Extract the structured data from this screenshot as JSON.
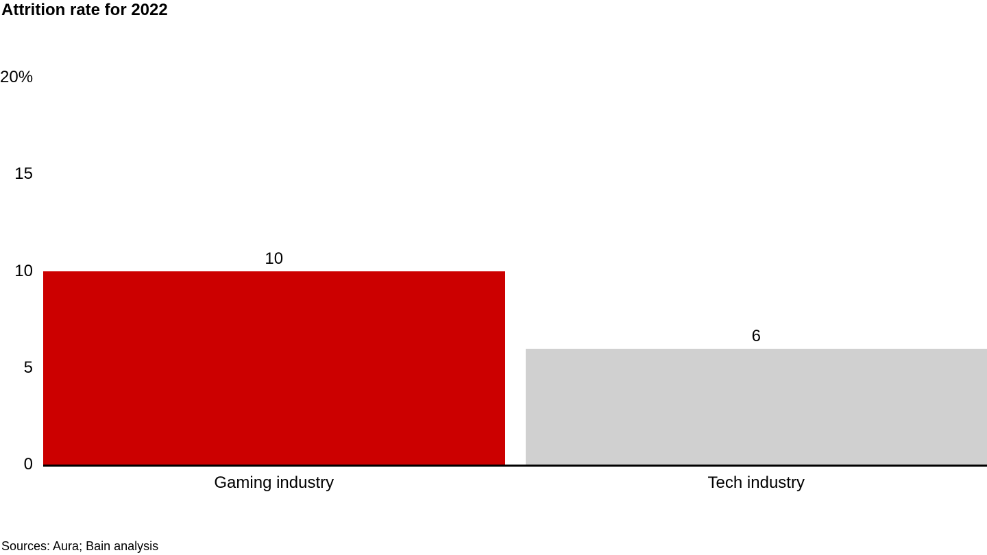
{
  "chart_data": {
    "type": "bar",
    "title": "Attrition rate for 2022",
    "categories": [
      "Gaming industry",
      "Tech industry"
    ],
    "values": [
      10,
      6
    ],
    "data_labels": [
      "10",
      "6"
    ],
    "bar_colors": [
      "#CC0000",
      "#D0D0D0"
    ],
    "y_ticks": [
      {
        "value": 20,
        "label": "20%"
      },
      {
        "value": 15,
        "label": "15"
      },
      {
        "value": 10,
        "label": "10"
      },
      {
        "value": 5,
        "label": "5"
      },
      {
        "value": 0,
        "label": "0"
      }
    ],
    "ylim": [
      0,
      20
    ],
    "xlabel": "",
    "ylabel": "",
    "grid": false,
    "legend": false,
    "axis_line_color": "#000000",
    "background_color": "#FFFFFF"
  },
  "footer": {
    "source": "Sources: Aura; Bain analysis"
  }
}
